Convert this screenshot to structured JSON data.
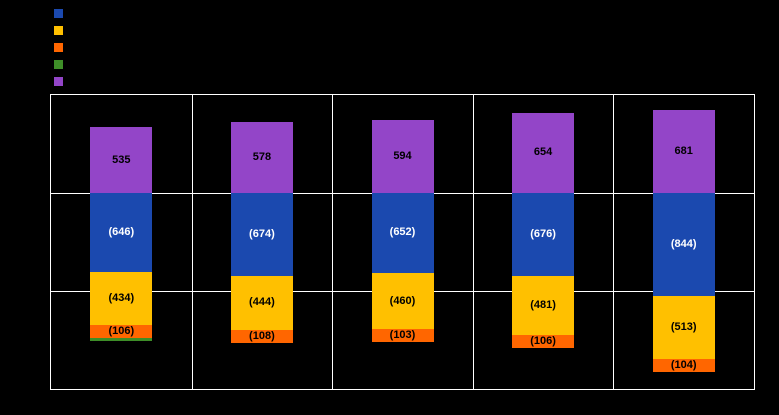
{
  "legend": {
    "items": [
      {
        "name": "series-blue",
        "color": "#1B49AF"
      },
      {
        "name": "series-yellow",
        "color": "#FFC000"
      },
      {
        "name": "series-orange",
        "color": "#FF6600"
      },
      {
        "name": "series-green",
        "color": "#3E8E28"
      },
      {
        "name": "series-purple",
        "color": "#9345C8"
      }
    ]
  },
  "chart_data": {
    "type": "bar",
    "stacked": true,
    "background": "#000000",
    "grid": true,
    "grid_step": 800,
    "ylim": [
      -1600,
      800
    ],
    "categories": [
      "",
      "",
      "",
      "",
      ""
    ],
    "series": [
      {
        "name": "purple",
        "color": "#9345C8",
        "label_color": "#000000",
        "values": [
          535,
          578,
          594,
          654,
          681
        ],
        "labels": [
          "535",
          "578",
          "594",
          "654",
          "681"
        ]
      },
      {
        "name": "blue",
        "color": "#1B49AF",
        "label_color": "#FFFFFF",
        "values": [
          -646,
          -674,
          -652,
          -676,
          -844
        ],
        "labels": [
          "(646)",
          "(674)",
          "(652)",
          "(676)",
          "(844)"
        ]
      },
      {
        "name": "yellow",
        "color": "#FFC000",
        "label_color": "#000000",
        "values": [
          -434,
          -444,
          -460,
          -481,
          -513
        ],
        "labels": [
          "(434)",
          "(444)",
          "(460)",
          "(481)",
          "(513)"
        ]
      },
      {
        "name": "orange",
        "color": "#FF6600",
        "label_color": "#000000",
        "values": [
          -106,
          -108,
          -103,
          -106,
          -104
        ],
        "labels": [
          "(106)",
          "(108)",
          "(103)",
          "(106)",
          "(104)"
        ]
      },
      {
        "name": "green",
        "color": "#3E8E28",
        "label_color": "#000000",
        "values": [
          -25,
          0,
          0,
          0,
          0
        ],
        "labels": [
          "",
          "",
          "",
          "",
          ""
        ]
      }
    ]
  }
}
